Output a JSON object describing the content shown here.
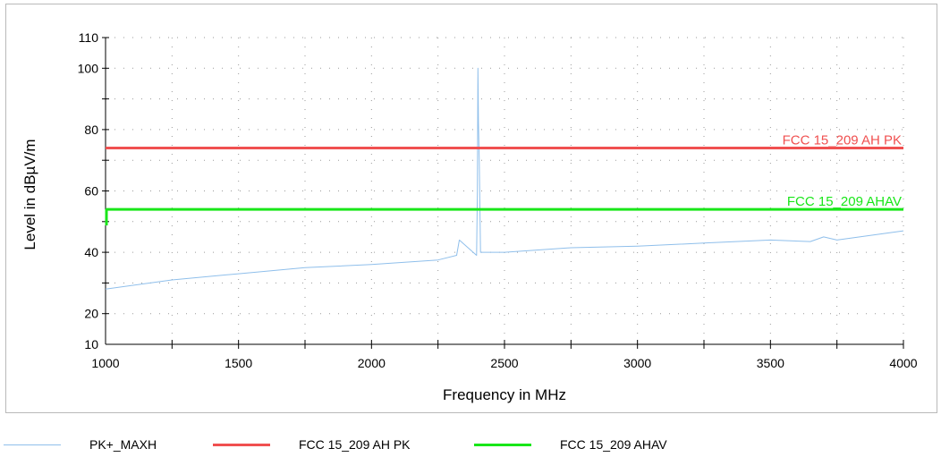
{
  "colors": {
    "trace": "#8fbfeb",
    "limit_pk": "#f05050",
    "limit_av": "#19e619",
    "grid": "#9a9a9a",
    "axis": "#000000"
  },
  "chart_data": {
    "type": "line",
    "xlabel": "Frequency in MHz",
    "ylabel": "Level in dBµV/m",
    "xlim": [
      1000,
      4000
    ],
    "ylim": [
      10,
      110
    ],
    "x_ticks": [
      "1000",
      "1500",
      "2000",
      "2500",
      "3000",
      "3500",
      "4000"
    ],
    "y_ticks": [
      "10",
      "20",
      "40",
      "60",
      "80",
      "100",
      "110"
    ],
    "grid": true,
    "legend_position": "bottom",
    "series": [
      {
        "name": "PK+_MAXH",
        "color": "#8fbfeb",
        "x": [
          1000,
          1250,
          1500,
          1750,
          2000,
          2250,
          2320,
          2330,
          2395,
          2398,
          2400,
          2402,
          2405,
          2410,
          2500,
          2750,
          3000,
          3250,
          3500,
          3650,
          3700,
          3750,
          4000
        ],
        "y": [
          28,
          31,
          33,
          35,
          36,
          37.5,
          39,
          44,
          39,
          60,
          100,
          82,
          70,
          40,
          40,
          41.5,
          42,
          43,
          44,
          43.5,
          45,
          44,
          47
        ]
      },
      {
        "name": "FCC 15_209 AH PK",
        "color": "#f05050",
        "x": [
          1000,
          4000
        ],
        "y": [
          74,
          74
        ]
      },
      {
        "name": "FCC 15_209 AHAV",
        "color": "#19e619",
        "x": [
          1000,
          4000
        ],
        "y": [
          54,
          54
        ]
      }
    ],
    "annotations": [
      {
        "text": "FCC 15_209 AH PK",
        "color": "#f05050",
        "y": 74
      },
      {
        "text": "FCC 15_209 AHAV",
        "color": "#19e619",
        "y": 54
      }
    ]
  },
  "legend": {
    "items": [
      {
        "label": "PK+_MAXH"
      },
      {
        "label": "FCC 15_209 AH PK"
      },
      {
        "label": "FCC 15_209 AHAV"
      }
    ]
  }
}
